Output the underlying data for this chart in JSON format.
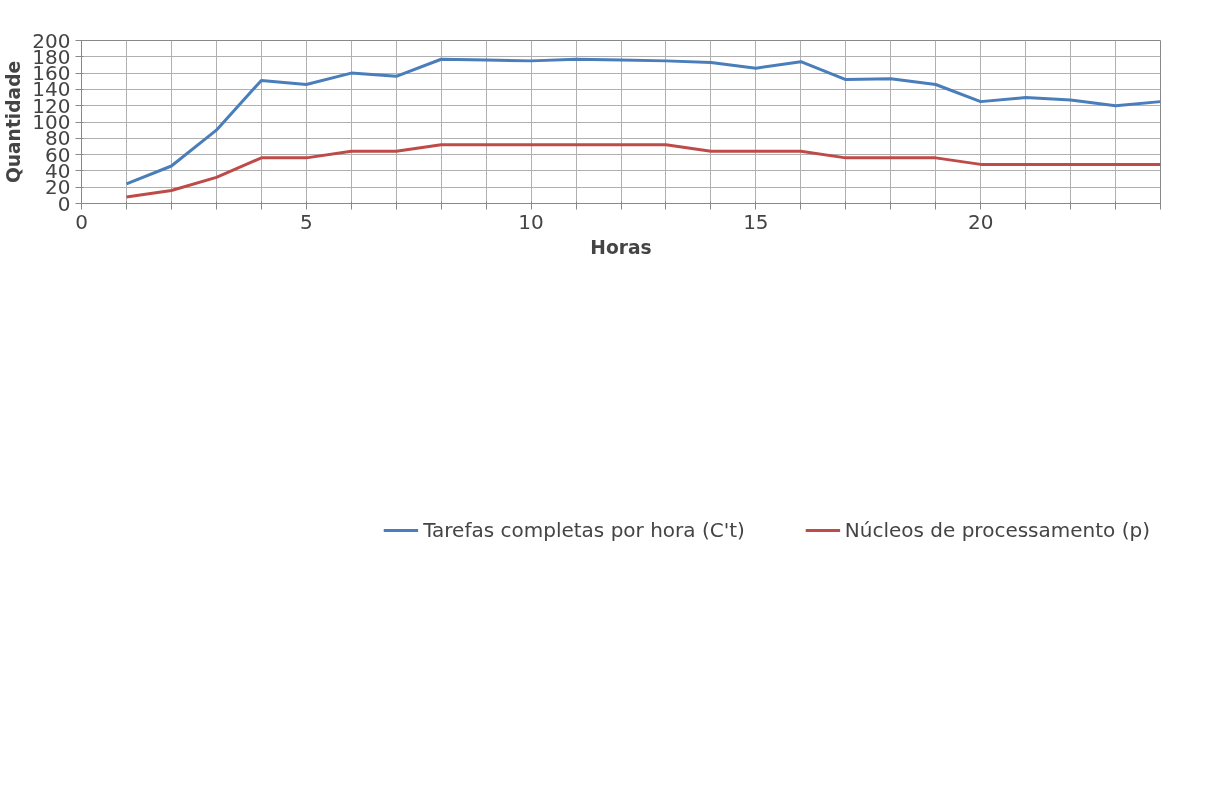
{
  "chart_data": {
    "type": "line",
    "xlabel": "Horas",
    "ylabel": "Quantidade",
    "x": [
      1,
      2,
      3,
      4,
      5,
      6,
      7,
      8,
      9,
      10,
      11,
      12,
      13,
      14,
      15,
      16,
      17,
      18,
      19,
      20,
      21,
      22,
      23,
      24
    ],
    "series": [
      {
        "name": "Tarefas completas por hora (C't)",
        "color": "#4a7ebb",
        "values": [
          24,
          46,
          90,
          151,
          146,
          160,
          156,
          177,
          176,
          175,
          177,
          176,
          175,
          173,
          166,
          174,
          152,
          153,
          146,
          125,
          130,
          127,
          120,
          125
        ]
      },
      {
        "name": "Núcleos de processamento (p)",
        "color": "#be4b48",
        "values": [
          8,
          16,
          32,
          56,
          56,
          64,
          64,
          72,
          72,
          72,
          72,
          72,
          72,
          64,
          64,
          64,
          56,
          56,
          56,
          48,
          48,
          48,
          48,
          48
        ]
      }
    ],
    "xlim": [
      0,
      24
    ],
    "xticks": [
      0,
      {
        "value": 1,
        "label": null
      },
      {
        "value": 2,
        "label": null
      },
      {
        "value": 3,
        "label": null
      },
      {
        "value": 4,
        "label": null
      },
      5,
      {
        "value": 6,
        "label": null
      },
      {
        "value": 7,
        "label": null
      },
      {
        "value": 8,
        "label": null
      },
      {
        "value": 9,
        "label": null
      },
      10,
      {
        "value": 11,
        "label": null
      },
      {
        "value": 12,
        "label": null
      },
      {
        "value": 13,
        "label": null
      },
      {
        "value": 14,
        "label": null
      },
      15,
      {
        "value": 16,
        "label": null
      },
      {
        "value": 17,
        "label": null
      },
      {
        "value": 18,
        "label": null
      },
      {
        "value": 19,
        "label": null
      },
      20,
      {
        "value": 21,
        "label": null
      },
      {
        "value": 22,
        "label": null
      },
      {
        "value": 23,
        "label": null
      },
      {
        "value": 24,
        "label": null
      }
    ],
    "ylim": [
      0,
      200
    ],
    "yticks": [
      0,
      20,
      40,
      60,
      80,
      100,
      120,
      140,
      160,
      180,
      200
    ],
    "grid": true,
    "legend": "bottom",
    "marker": "none",
    "line_style": "solid"
  }
}
